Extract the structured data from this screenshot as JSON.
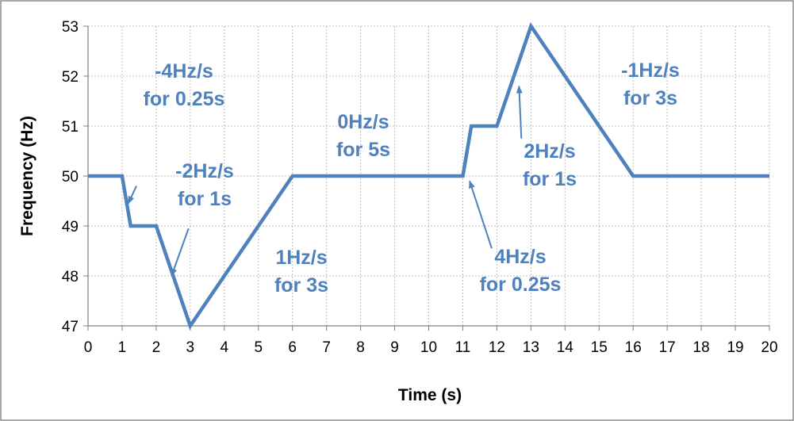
{
  "chart_data": {
    "type": "line",
    "title": "",
    "xlabel": "Time (s)",
    "ylabel": "Frequency (Hz)",
    "xlim": [
      0,
      20
    ],
    "ylim": [
      47,
      53
    ],
    "x_ticks": [
      "0",
      "1",
      "2",
      "3",
      "4",
      "5",
      "6",
      "7",
      "8",
      "9",
      "10",
      "11",
      "12",
      "13",
      "14",
      "15",
      "16",
      "17",
      "18",
      "19",
      "20"
    ],
    "y_ticks": [
      "47",
      "48",
      "49",
      "50",
      "51",
      "52",
      "53"
    ],
    "grid": true,
    "legend": "none",
    "colors": {
      "line": "#4f81bd",
      "annotation": "#4f81bd",
      "grid": "#bfbfbf",
      "axis": "#808080"
    },
    "series": [
      {
        "x": [
          0,
          1,
          1.25,
          2,
          3,
          6,
          11,
          11.25,
          12,
          13,
          16,
          20
        ],
        "y": [
          50,
          50,
          49,
          49,
          47,
          50,
          50,
          51,
          51,
          53,
          50,
          50
        ]
      }
    ],
    "annotations": [
      {
        "lines": [
          "-4Hz/s",
          "for 0.25s"
        ],
        "arrow_from": [
          1.42,
          49.8
        ],
        "arrow_to": [
          1.18,
          49.45
        ]
      },
      {
        "lines": [
          "-2Hz/s",
          "for 1s"
        ],
        "arrow_from": [
          2.95,
          48.95
        ],
        "arrow_to": [
          2.45,
          48.0
        ]
      },
      {
        "lines": [
          "1Hz/s",
          "for 3s"
        ]
      },
      {
        "lines": [
          "0Hz/s",
          "for 5s"
        ]
      },
      {
        "lines": [
          "4Hz/s",
          "for 0.25s"
        ],
        "arrow_from": [
          11.85,
          48.55
        ],
        "arrow_to": [
          11.2,
          49.9
        ]
      },
      {
        "lines": [
          "2Hz/s",
          "for 1s"
        ],
        "arrow_from": [
          12.72,
          50.75
        ],
        "arrow_to": [
          12.65,
          51.8
        ]
      },
      {
        "lines": [
          "-1Hz/s",
          "for 3s"
        ]
      }
    ]
  }
}
